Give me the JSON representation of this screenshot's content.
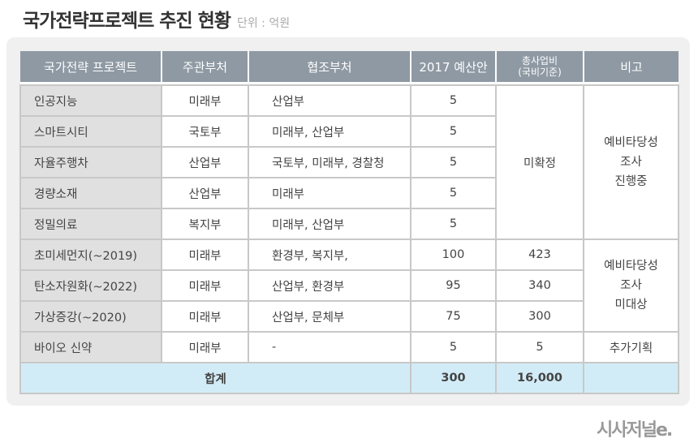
{
  "title": "국가전략프로젝트 추진 현황",
  "unit": "단위 : 억원",
  "headers": [
    "국가전략 프로젝트",
    "주관부처",
    "협조부처",
    "2017 예산안",
    "총사업비\n(국비기준)",
    "비고"
  ],
  "headers_total_line1": "총사업비",
  "headers_total_line2": "(국비기준)",
  "rows": [
    {
      "name": "인공지능",
      "lead": "미래부",
      "coop": "산업부",
      "budget": "5"
    },
    {
      "name": "스마트시티",
      "lead": "국토부",
      "coop": "미래부, 산업부",
      "budget": "5"
    },
    {
      "name": "자율주행차",
      "lead": "산업부",
      "coop": "국토부, 미래부, 경찰청",
      "budget": "5"
    },
    {
      "name": "경량소재",
      "lead": "산업부",
      "coop": "미래부",
      "budget": "5"
    },
    {
      "name": "정밀의료",
      "lead": "복지부",
      "coop": "미래부, 산업부",
      "budget": "5"
    },
    {
      "name": "초미세먼지(~2019)",
      "lead": "미래부",
      "coop": "환경부, 복지부,",
      "budget": "100",
      "total": "423"
    },
    {
      "name": "탄소자원화(~2022)",
      "lead": "미래부",
      "coop": "산업부, 환경부",
      "budget": "95",
      "total": "340"
    },
    {
      "name": "가상증강(~2020)",
      "lead": "미래부",
      "coop": "산업부, 문체부",
      "budget": "75",
      "total": "300"
    },
    {
      "name": "바이오 신약",
      "lead": "미래부",
      "coop": "-",
      "budget": "5",
      "total": "5",
      "note": "추가기획"
    }
  ],
  "group1": {
    "total": "미확정",
    "note": [
      "예비타당성",
      "조사",
      "진행중"
    ]
  },
  "group2": {
    "note": [
      "예비타당성",
      "조사",
      "미대상"
    ]
  },
  "sum": {
    "label": "합계",
    "budget": "300",
    "total": "16,000"
  },
  "logo": "시사저널e."
}
